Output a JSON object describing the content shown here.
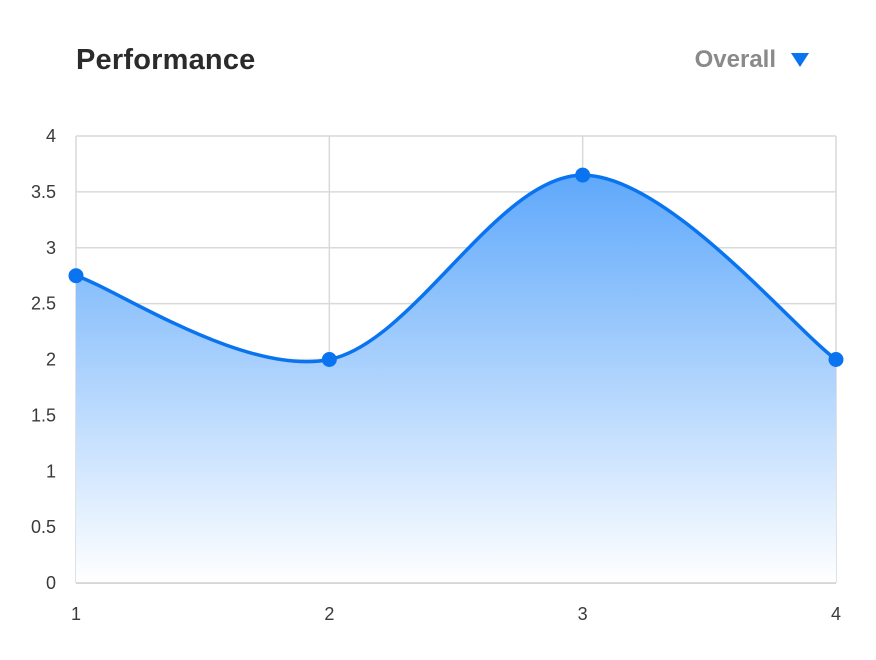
{
  "header": {
    "title": "Performance",
    "filter_label": "Overall"
  },
  "icons": {
    "filter_caret": "triangle-down-icon"
  },
  "colors": {
    "accent": "#0a74f0",
    "fill_top": "#5fa8fb",
    "fill_bottom": "#ffffff",
    "grid": "#d9d9d9",
    "title": "#2b2b2b",
    "filter_label": "#8a8a8a"
  },
  "chart_data": {
    "type": "area",
    "title": "Performance",
    "xlabel": "",
    "ylabel": "",
    "x": [
      1,
      2,
      3,
      4
    ],
    "series": [
      {
        "values": [
          2.75,
          2,
          3.65,
          2
        ]
      }
    ],
    "xlim": [
      1,
      4
    ],
    "ylim": [
      0,
      4
    ],
    "x_ticks": [
      "1",
      "2",
      "3",
      "4"
    ],
    "y_ticks": [
      "0",
      "0.5",
      "1",
      "1.5",
      "2",
      "2.5",
      "3",
      "3.5",
      "4"
    ],
    "grid": true,
    "smooth": true,
    "markers": true,
    "legend": "none"
  }
}
